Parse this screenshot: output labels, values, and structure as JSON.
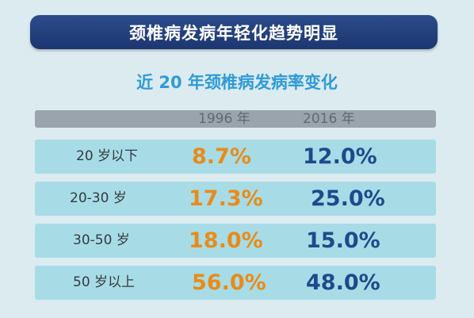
{
  "banner": {
    "title": "颈椎病发病年轻化趋势明显"
  },
  "chart_data": {
    "type": "table",
    "title": "近 20 年颈椎病发病率变化",
    "columns": [
      "1996 年",
      "2016 年"
    ],
    "categories": [
      "20 岁以下",
      "20-30 岁",
      "30-50 岁",
      "50 岁以上"
    ],
    "series": [
      {
        "name": "1996 年",
        "values": [
          "8.7%",
          "17.3%",
          "18.0%",
          "56.0%"
        ],
        "color": "#e88b1a"
      },
      {
        "name": "2016 年",
        "values": [
          "12.0%",
          "25.0%",
          "15.0%",
          "48.0%"
        ],
        "color": "#1e4a8c"
      }
    ]
  }
}
